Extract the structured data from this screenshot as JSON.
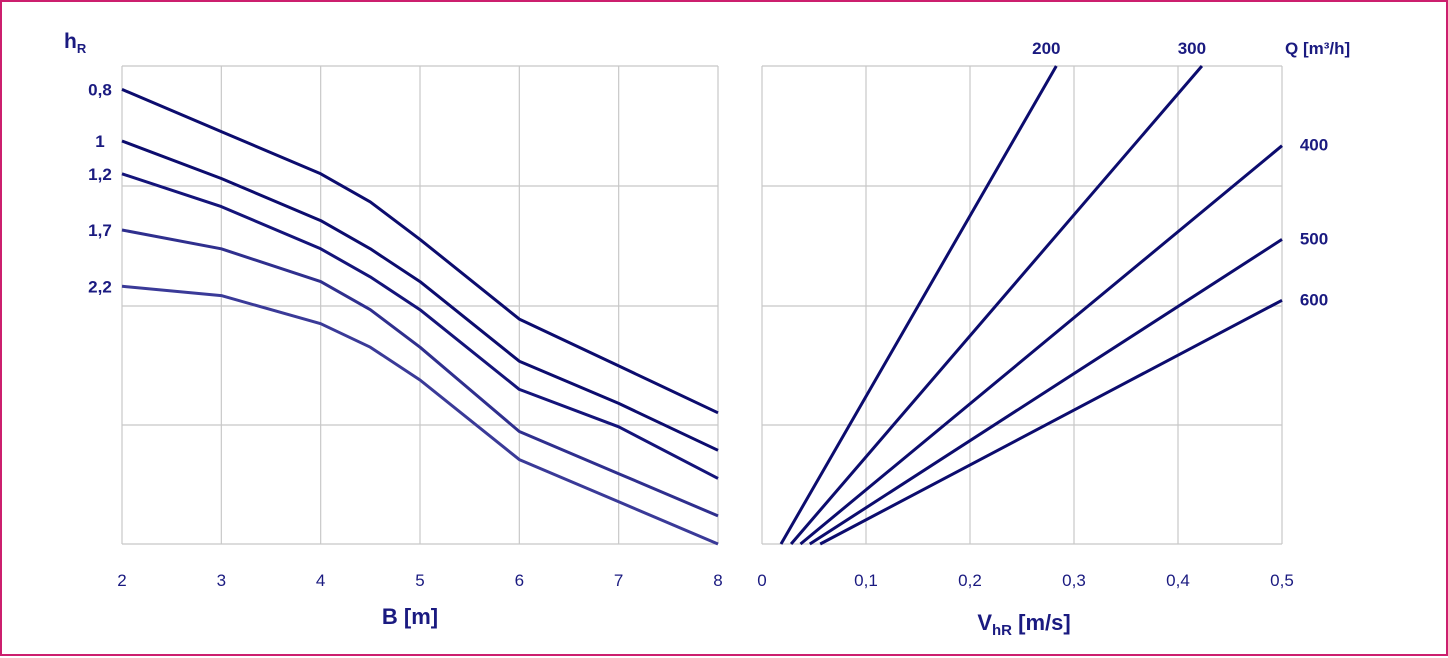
{
  "chart_data": [
    {
      "type": "line",
      "title": "",
      "xlabel": "B [m]",
      "ylabel": "h",
      "ylabel_sub": "R",
      "xlim": [
        2,
        8
      ],
      "xticks": [
        "2",
        "3",
        "4",
        "5",
        "6",
        "7",
        "8"
      ],
      "ytick_labels": [
        "0,8",
        "1",
        "1,2",
        "1,7",
        "2,2"
      ],
      "grid": true,
      "series": [
        {
          "name": "0,8",
          "x": [
            2,
            3,
            4,
            4.5,
            5,
            6,
            7,
            8
          ],
          "y": [
            0.73,
            0.64,
            0.55,
            0.49,
            0.41,
            0.24,
            0.14,
            0.04
          ]
        },
        {
          "name": "1",
          "x": [
            2,
            3,
            4,
            4.5,
            5,
            6,
            7,
            8
          ],
          "y": [
            0.62,
            0.54,
            0.45,
            0.39,
            0.32,
            0.15,
            0.06,
            -0.04
          ]
        },
        {
          "name": "1,2",
          "x": [
            2,
            3,
            4,
            4.5,
            5,
            6,
            7,
            8
          ],
          "y": [
            0.55,
            0.48,
            0.39,
            0.33,
            0.26,
            0.09,
            0.01,
            -0.1
          ]
        },
        {
          "name": "1,7",
          "x": [
            2,
            3,
            4,
            4.5,
            5,
            6,
            7,
            8
          ],
          "y": [
            0.43,
            0.39,
            0.32,
            0.26,
            0.18,
            0.0,
            -0.09,
            -0.18
          ]
        },
        {
          "name": "2,2",
          "x": [
            2,
            3,
            4,
            4.5,
            5,
            6,
            7,
            8
          ],
          "y": [
            0.31,
            0.29,
            0.23,
            0.18,
            0.11,
            -0.06,
            -0.15,
            -0.24
          ]
        }
      ]
    },
    {
      "type": "line",
      "title": "",
      "xlabel": "V",
      "xlabel_sub": "hR",
      "xlabel_unit": " [m/s]",
      "xlim": [
        0,
        0.5
      ],
      "xticks": [
        "0",
        "0,1",
        "0,2",
        "0,3",
        "0,4",
        "0,5"
      ],
      "legend_title": "Q [m³/h]",
      "grid": true,
      "series": [
        {
          "name": "200",
          "x": [
            0.0183,
            0.283
          ],
          "y": [
            -0.24,
            0.78
          ]
        },
        {
          "name": "300",
          "x": [
            0.028,
            0.423
          ],
          "y": [
            -0.24,
            0.78
          ]
        },
        {
          "name": "400",
          "x": [
            0.037,
            0.5
          ],
          "y": [
            -0.24,
            0.61
          ]
        },
        {
          "name": "500",
          "x": [
            0.046,
            0.5
          ],
          "y": [
            -0.24,
            0.41
          ]
        },
        {
          "name": "600",
          "x": [
            0.056,
            0.5
          ],
          "y": [
            -0.24,
            0.28
          ]
        }
      ]
    }
  ]
}
